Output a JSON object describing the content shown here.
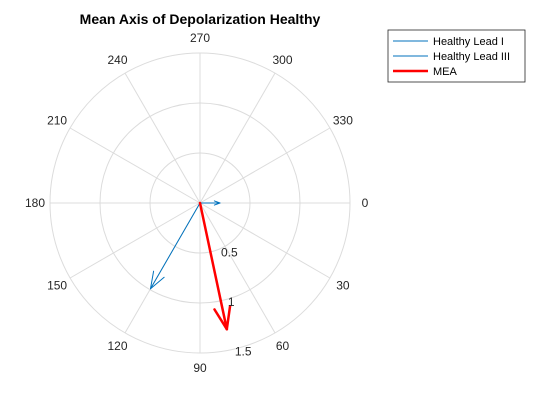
{
  "chart_data": {
    "type": "polar",
    "title": "Mean Axis of Depolarization Healthy",
    "theta_direction": "clockwise",
    "theta_zero_location": "right",
    "theta_ticks_deg": [
      0,
      30,
      60,
      90,
      120,
      150,
      180,
      210,
      240,
      270,
      300,
      330
    ],
    "theta_tick_labels": [
      "0",
      "30",
      "60",
      "90",
      "120",
      "150",
      "180",
      "210",
      "240",
      "270",
      "300",
      "330"
    ],
    "rlim": [
      0,
      1.5
    ],
    "r_ticks": [
      0.5,
      1,
      1.5
    ],
    "r_tick_labels": [
      "0.5",
      "1",
      "1.5"
    ],
    "r_tick_label_angle_deg": 82,
    "grid": true,
    "legend": {
      "location": "outside-top-right",
      "entries": [
        "Healthy Lead I",
        "Healthy Lead III",
        "MEA"
      ]
    },
    "series": [
      {
        "name": "Healthy Lead I",
        "color": "#0072bd",
        "line_width": 1,
        "theta_deg": 0,
        "r": 0.2
      },
      {
        "name": "Healthy Lead III",
        "color": "#0072bd",
        "line_width": 1,
        "theta_deg": 120,
        "r": 0.99
      },
      {
        "name": "MEA",
        "color": "#ff0000",
        "line_width": 2.5,
        "theta_deg": 78,
        "r": 1.29
      }
    ]
  }
}
